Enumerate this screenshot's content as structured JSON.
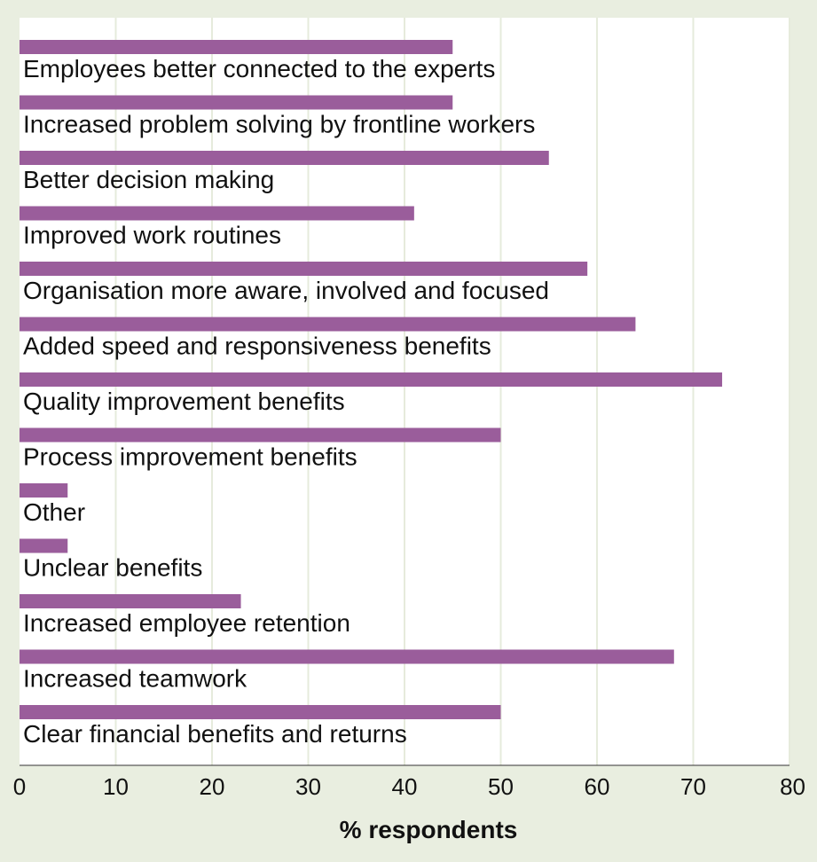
{
  "chart_data": {
    "type": "bar",
    "orientation": "horizontal",
    "categories": [
      "Employees better connected to the experts",
      "Increased problem solving by frontline workers",
      "Better decision making",
      "Improved work routines",
      "Organisation more aware, involved and focused",
      "Added speed and responsiveness benefits",
      "Quality improvement benefits",
      "Process improvement benefits",
      "Other",
      "Unclear benefits",
      "Increased employee retention",
      "Increased teamwork",
      "Clear financial benefits and returns"
    ],
    "values": [
      45,
      45,
      55,
      41,
      59,
      64,
      73,
      50,
      5,
      5,
      23,
      68,
      50
    ],
    "title": "",
    "xlabel": "% respondents",
    "ylabel": "",
    "xlim": [
      0,
      80
    ],
    "xticks": [
      "0",
      "10",
      "20",
      "30",
      "40",
      "50",
      "60",
      "70",
      "80"
    ],
    "grid": "vertical",
    "colors": {
      "bar": "#9a5d9b",
      "plot_background": "#ffffff",
      "page_background": "#e9eee0",
      "gridline": "#e6ebdc"
    }
  }
}
